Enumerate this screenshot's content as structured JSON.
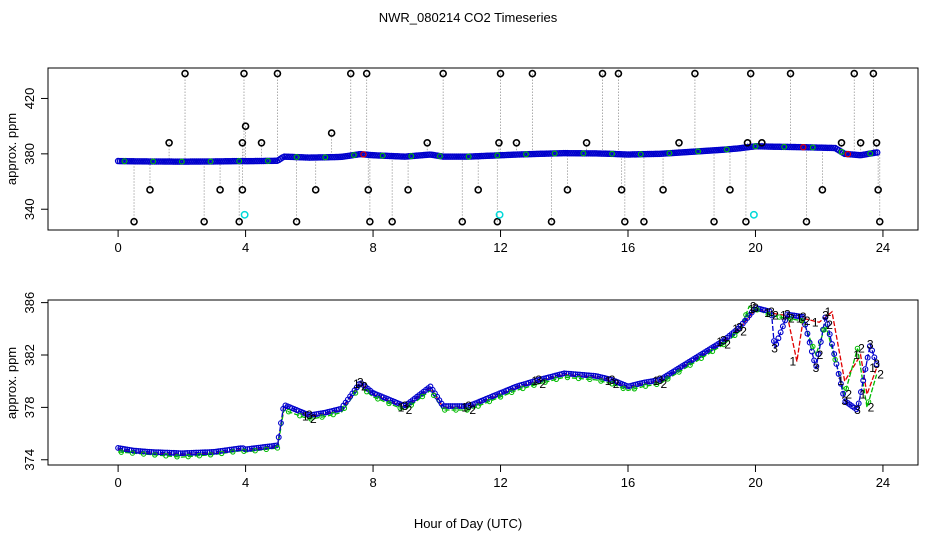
{
  "page_title": "NWR_080214  CO2 Timeseries",
  "x_label": "Hour of Day (UTC)",
  "colors": {
    "flag_marker": "#000000",
    "flag_line": "#999999",
    "series_1": "#e00000",
    "series_2": "#00bb00",
    "series_3": "#0000cc",
    "special": "#00d8d8"
  },
  "chart_data": [
    {
      "type": "scatter",
      "title": "NWR_080214  CO2 Timeseries",
      "xlabel": "Hour of Day (UTC)",
      "ylabel": "approx. ppm",
      "xlim": [
        -2.2,
        25.1
      ],
      "ylim": [
        325,
        442
      ],
      "xticks": [
        "0",
        "4",
        "8",
        "12",
        "16",
        "20",
        "24"
      ],
      "yticks": [
        "340",
        "380",
        "420"
      ],
      "baseline": [
        [
          0.0,
          374.8
        ],
        [
          0.5,
          374.6
        ],
        [
          1.0,
          374.5
        ],
        [
          2.0,
          374.4
        ],
        [
          3.0,
          374.5
        ],
        [
          3.9,
          374.8
        ],
        [
          4.0,
          374.7
        ],
        [
          5.0,
          375.0
        ],
        [
          5.2,
          378.0
        ],
        [
          6.0,
          377.3
        ],
        [
          6.5,
          377.5
        ],
        [
          7.0,
          377.8
        ],
        [
          7.6,
          379.8
        ],
        [
          8.0,
          379.0
        ],
        [
          8.5,
          378.5
        ],
        [
          9.0,
          378.0
        ],
        [
          9.8,
          379.5
        ],
        [
          10.2,
          378.0
        ],
        [
          11.0,
          378.0
        ],
        [
          12.0,
          379.0
        ],
        [
          12.5,
          379.5
        ],
        [
          13.2,
          380.0
        ],
        [
          14.0,
          380.5
        ],
        [
          15.0,
          380.3
        ],
        [
          15.5,
          380.0
        ],
        [
          16.0,
          379.5
        ],
        [
          16.5,
          379.8
        ],
        [
          17.0,
          380.0
        ],
        [
          18.0,
          381.5
        ],
        [
          19.0,
          383.0
        ],
        [
          19.5,
          384.0
        ],
        [
          20.0,
          385.5
        ],
        [
          20.5,
          385.2
        ],
        [
          21.0,
          385.0
        ],
        [
          21.5,
          384.8
        ],
        [
          22.0,
          384.5
        ],
        [
          22.5,
          384.2
        ],
        [
          22.8,
          380.0
        ],
        [
          23.3,
          379.0
        ],
        [
          23.8,
          381.0
        ]
      ],
      "flagged_points": [
        [
          0.5,
          331
        ],
        [
          1.0,
          354
        ],
        [
          1.6,
          388
        ],
        [
          2.1,
          438
        ],
        [
          2.7,
          331
        ],
        [
          3.2,
          354
        ],
        [
          3.8,
          331
        ],
        [
          3.9,
          354
        ],
        [
          3.9,
          388
        ],
        [
          3.95,
          438
        ],
        [
          4.0,
          400
        ],
        [
          4.5,
          388
        ],
        [
          5.0,
          438
        ],
        [
          5.6,
          331
        ],
        [
          6.2,
          354
        ],
        [
          6.7,
          395
        ],
        [
          7.3,
          438
        ],
        [
          7.8,
          438
        ],
        [
          7.85,
          354
        ],
        [
          7.9,
          331
        ],
        [
          8.6,
          331
        ],
        [
          9.1,
          354
        ],
        [
          9.7,
          388
        ],
        [
          10.2,
          438
        ],
        [
          10.8,
          331
        ],
        [
          11.3,
          354
        ],
        [
          11.9,
          331
        ],
        [
          11.95,
          388
        ],
        [
          12.0,
          438
        ],
        [
          12.5,
          388
        ],
        [
          13.0,
          438
        ],
        [
          13.6,
          331
        ],
        [
          14.1,
          354
        ],
        [
          14.7,
          388
        ],
        [
          15.2,
          438
        ],
        [
          15.7,
          438
        ],
        [
          15.8,
          354
        ],
        [
          15.9,
          331
        ],
        [
          16.5,
          331
        ],
        [
          17.1,
          354
        ],
        [
          17.6,
          388
        ],
        [
          18.1,
          438
        ],
        [
          18.7,
          331
        ],
        [
          19.2,
          354
        ],
        [
          19.7,
          331
        ],
        [
          19.75,
          388
        ],
        [
          19.85,
          438
        ],
        [
          20.2,
          388
        ],
        [
          21.1,
          438
        ],
        [
          21.6,
          331
        ],
        [
          22.1,
          354
        ],
        [
          22.7,
          388
        ],
        [
          23.1,
          438
        ],
        [
          23.3,
          388
        ],
        [
          23.7,
          438
        ],
        [
          23.8,
          388
        ],
        [
          23.85,
          354
        ],
        [
          23.9,
          331
        ]
      ],
      "special_points": [
        [
          3.97,
          336
        ],
        [
          11.97,
          336
        ],
        [
          19.95,
          336
        ]
      ]
    },
    {
      "type": "line",
      "ylabel": "approx. ppm",
      "xlabel": "Hour of Day (UTC)",
      "xlim": [
        -2.2,
        25.1
      ],
      "ylim": [
        373.6,
        386.2
      ],
      "xticks": [
        "0",
        "4",
        "8",
        "12",
        "16",
        "20",
        "24"
      ],
      "yticks": [
        "374",
        "378",
        "382",
        "386"
      ],
      "series": [
        {
          "name": "1",
          "values": [
            [
              0.0,
              374.8
            ],
            [
              0.5,
              374.6
            ],
            [
              1.0,
              374.5
            ],
            [
              2.0,
              374.4
            ],
            [
              3.0,
              374.5
            ],
            [
              3.9,
              374.8
            ],
            [
              4.0,
              374.7
            ],
            [
              5.0,
              375.0
            ],
            [
              5.2,
              378.0
            ],
            [
              6.0,
              377.3
            ],
            [
              6.5,
              377.5
            ],
            [
              7.0,
              377.8
            ],
            [
              7.6,
              379.8
            ],
            [
              8.0,
              379.0
            ],
            [
              8.5,
              378.5
            ],
            [
              9.0,
              378.0
            ],
            [
              9.8,
              379.5
            ],
            [
              10.2,
              378.0
            ],
            [
              11.0,
              378.0
            ],
            [
              12.0,
              379.0
            ],
            [
              12.5,
              379.5
            ],
            [
              13.2,
              380.0
            ],
            [
              14.0,
              380.5
            ],
            [
              15.0,
              380.3
            ],
            [
              15.5,
              380.0
            ],
            [
              16.0,
              379.5
            ],
            [
              16.5,
              379.8
            ],
            [
              17.0,
              380.0
            ],
            [
              18.0,
              381.5
            ],
            [
              19.0,
              383.0
            ],
            [
              19.5,
              384.0
            ],
            [
              20.0,
              385.5
            ],
            [
              20.5,
              385.2
            ],
            [
              21.0,
              385.0
            ],
            [
              21.3,
              381.5
            ],
            [
              21.5,
              384.8
            ],
            [
              22.0,
              384.5
            ],
            [
              22.4,
              385.3
            ],
            [
              22.8,
              380.0
            ],
            [
              23.3,
              382.0
            ],
            [
              23.5,
              379.0
            ],
            [
              23.8,
              381.0
            ]
          ]
        },
        {
          "name": "2",
          "values": [
            [
              0.0,
              374.6
            ],
            [
              0.5,
              374.5
            ],
            [
              1.0,
              374.4
            ],
            [
              2.0,
              374.2
            ],
            [
              3.0,
              374.4
            ],
            [
              3.9,
              374.7
            ],
            [
              4.0,
              374.6
            ],
            [
              5.0,
              374.9
            ],
            [
              5.2,
              377.8
            ],
            [
              6.0,
              377.1
            ],
            [
              6.5,
              377.3
            ],
            [
              7.0,
              377.6
            ],
            [
              7.6,
              379.6
            ],
            [
              8.0,
              378.8
            ],
            [
              8.5,
              378.3
            ],
            [
              9.0,
              377.8
            ],
            [
              9.8,
              379.3
            ],
            [
              10.2,
              377.8
            ],
            [
              11.0,
              377.8
            ],
            [
              12.0,
              378.8
            ],
            [
              12.5,
              379.3
            ],
            [
              13.2,
              379.8
            ],
            [
              14.0,
              380.3
            ],
            [
              15.0,
              380.1
            ],
            [
              15.5,
              379.8
            ],
            [
              16.0,
              379.3
            ],
            [
              16.5,
              379.6
            ],
            [
              17.0,
              379.8
            ],
            [
              18.0,
              381.3
            ],
            [
              19.0,
              382.8
            ],
            [
              19.5,
              383.8
            ],
            [
              19.8,
              385.7
            ],
            [
              20.5,
              385.0
            ],
            [
              21.0,
              384.8
            ],
            [
              21.5,
              384.6
            ],
            [
              21.9,
              382.0
            ],
            [
              22.2,
              384.3
            ],
            [
              22.8,
              379.0
            ],
            [
              23.2,
              382.5
            ],
            [
              23.5,
              378.0
            ],
            [
              23.8,
              380.5
            ]
          ]
        },
        {
          "name": "3",
          "values": [
            [
              0.0,
              374.9
            ],
            [
              0.5,
              374.7
            ],
            [
              1.0,
              374.6
            ],
            [
              2.0,
              374.5
            ],
            [
              3.0,
              374.6
            ],
            [
              3.9,
              374.9
            ],
            [
              4.0,
              374.8
            ],
            [
              5.0,
              375.1
            ],
            [
              5.2,
              378.2
            ],
            [
              6.0,
              377.4
            ],
            [
              6.5,
              377.6
            ],
            [
              7.0,
              377.9
            ],
            [
              7.6,
              379.9
            ],
            [
              8.0,
              379.1
            ],
            [
              8.5,
              378.6
            ],
            [
              9.0,
              378.1
            ],
            [
              9.8,
              379.6
            ],
            [
              10.2,
              378.1
            ],
            [
              11.0,
              378.1
            ],
            [
              12.0,
              379.1
            ],
            [
              12.5,
              379.6
            ],
            [
              13.2,
              380.1
            ],
            [
              14.0,
              380.6
            ],
            [
              15.0,
              380.4
            ],
            [
              15.5,
              380.1
            ],
            [
              16.0,
              379.6
            ],
            [
              16.5,
              379.9
            ],
            [
              17.0,
              380.1
            ],
            [
              18.0,
              381.6
            ],
            [
              19.0,
              383.1
            ],
            [
              19.5,
              384.1
            ],
            [
              20.0,
              385.6
            ],
            [
              20.5,
              385.3
            ],
            [
              20.6,
              382.5
            ],
            [
              21.0,
              385.1
            ],
            [
              21.5,
              384.9
            ],
            [
              21.9,
              381.0
            ],
            [
              22.2,
              385.0
            ],
            [
              22.8,
              378.5
            ],
            [
              23.2,
              377.8
            ],
            [
              23.6,
              382.8
            ],
            [
              23.8,
              381.3
            ]
          ]
        }
      ]
    }
  ]
}
